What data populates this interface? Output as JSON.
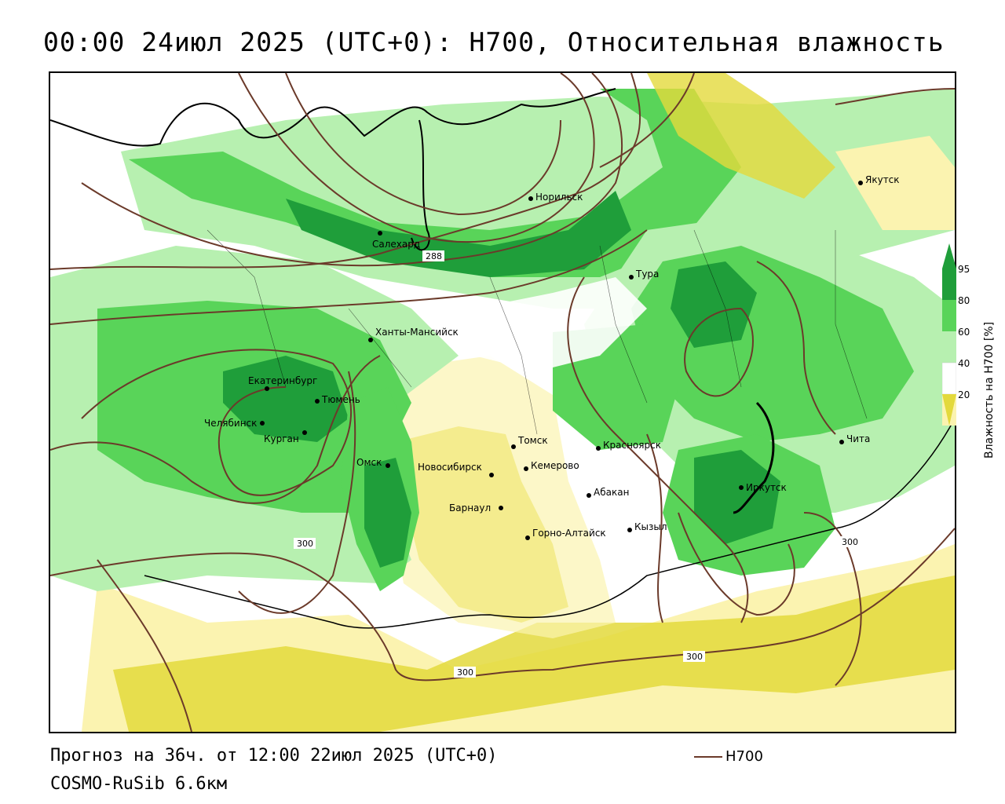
{
  "title": "00:00 24июл 2025 (UTC+0): H700, Относительная влажность",
  "footer": {
    "forecast": "Прогноз на 36ч. от 12:00 22июл 2025 (UTC+0)",
    "model": "COSMO-RuSib 6.6км"
  },
  "legend": {
    "line_label": "H700",
    "line_color": "#6b3a2a"
  },
  "colorbar": {
    "title": "Влажность на H700 [%]",
    "ticks": [
      "95",
      "80",
      "60",
      "40",
      "20"
    ],
    "colors": {
      "dark_green": "#1f9e3a",
      "green": "#59d459",
      "light_green": "#b7f0b0",
      "white": "#ffffff",
      "light_yellow": "#fbf3b0",
      "yellow": "#e3d93c"
    }
  },
  "cities": [
    {
      "name": "Якутск"
    },
    {
      "name": "Норильск"
    },
    {
      "name": "Салехард"
    },
    {
      "name": "Тура"
    },
    {
      "name": "Ханты-Мансийск"
    },
    {
      "name": "Екатеринбург"
    },
    {
      "name": "Тюмень"
    },
    {
      "name": "Челябинск"
    },
    {
      "name": "Курган"
    },
    {
      "name": "Омск"
    },
    {
      "name": "Томск"
    },
    {
      "name": "Новосибирск"
    },
    {
      "name": "Кемерово"
    },
    {
      "name": "Красноярск"
    },
    {
      "name": "Абакан"
    },
    {
      "name": "Барнаул"
    },
    {
      "name": "Горно-Алтайск"
    },
    {
      "name": "Кызыл"
    },
    {
      "name": "Иркутск"
    },
    {
      "name": "Чита"
    }
  ],
  "contour_labels": [
    "288",
    "300",
    "300",
    "300",
    "300"
  ]
}
